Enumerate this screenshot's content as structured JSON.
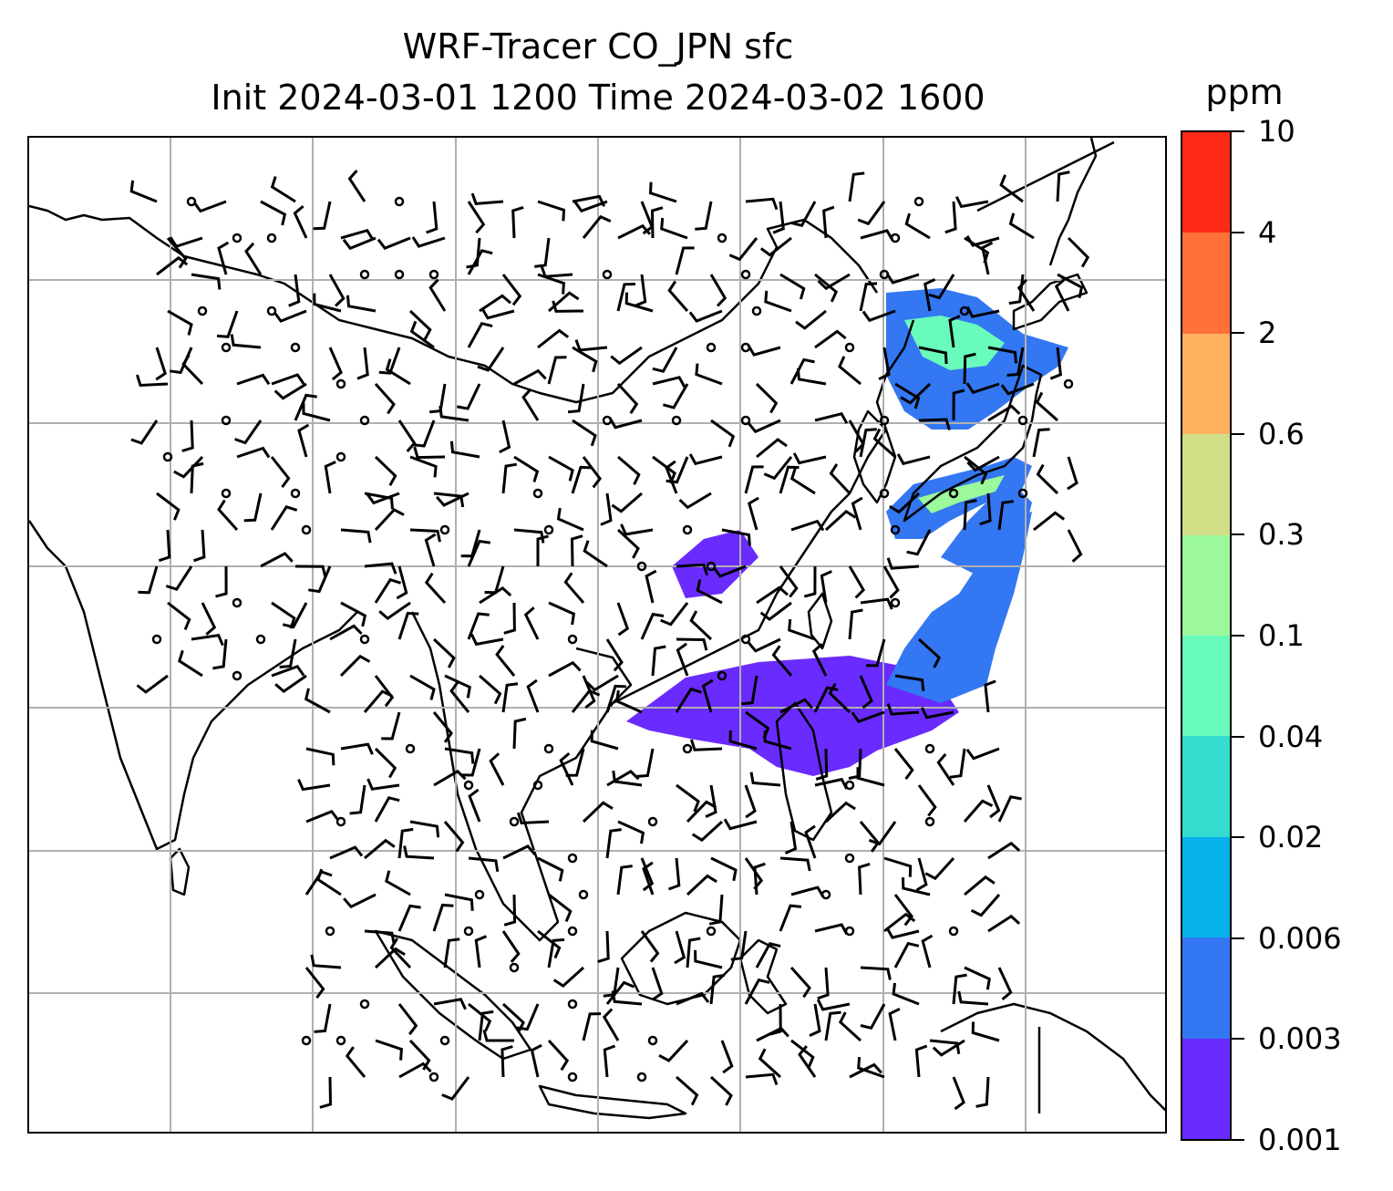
{
  "title": {
    "line1": "WRF-Tracer CO_JPN sfc",
    "line2": "Init 2024-03-01 1200 Time 2024-03-02 1600"
  },
  "colorbar": {
    "unit": "ppm",
    "levels": [
      "0.001",
      "0.003",
      "0.006",
      "0.02",
      "0.04",
      "0.1",
      "0.3",
      "0.6",
      "2",
      "4",
      "10"
    ],
    "colors": [
      "#6a2bff",
      "#3377f2",
      "#07b2ea",
      "#33dccf",
      "#69fbbc",
      "#9bf89b",
      "#d0df86",
      "#ffb160",
      "#ff7139",
      "#ff2a16"
    ]
  },
  "map": {
    "type": "tracer-concentration-with-wind-barbs",
    "variable": "CO_JPN",
    "level": "sfc",
    "gridlines": true,
    "plume_colors": {
      "low": "#6a2bff",
      "mid": "#3377f2",
      "high": "#69fbbc",
      "peak": "#9bf89b"
    }
  }
}
